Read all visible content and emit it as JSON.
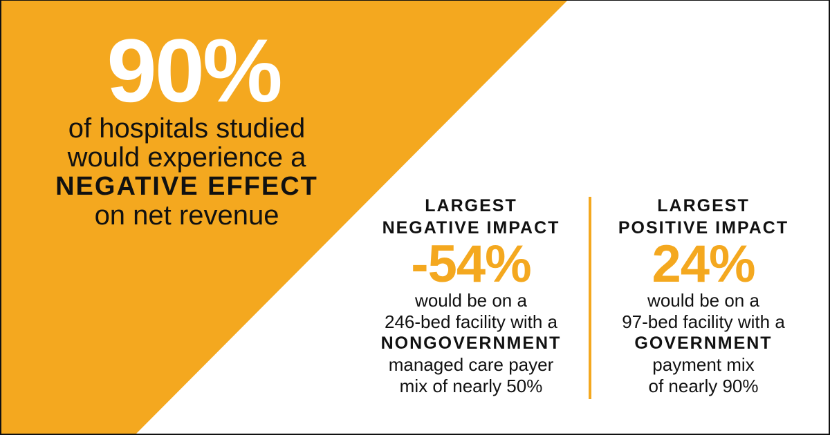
{
  "colors": {
    "accent": "#F4A81F",
    "text": "#111111",
    "background": "#FFFFFF"
  },
  "headline": {
    "stat": "90%",
    "line1": "of hospitals studied",
    "line2": "would experience a",
    "emphasis": "NEGATIVE EFFECT",
    "line3": "on net revenue"
  },
  "negative": {
    "heading1": "LARGEST",
    "heading2": "NEGATIVE IMPACT",
    "value": "-54%",
    "line1": "would be on a",
    "line2": "246-bed facility with a",
    "emphasis": "NONGOVERNMENT",
    "line3": "managed care payer",
    "line4": "mix of nearly 50%"
  },
  "positive": {
    "heading1": "LARGEST",
    "heading2": "POSITIVE IMPACT",
    "value": "24%",
    "line1": "would be on a",
    "line2": "97-bed facility with a",
    "emphasis": "GOVERNMENT",
    "line3": "payment mix",
    "line4": "of nearly 90%"
  }
}
